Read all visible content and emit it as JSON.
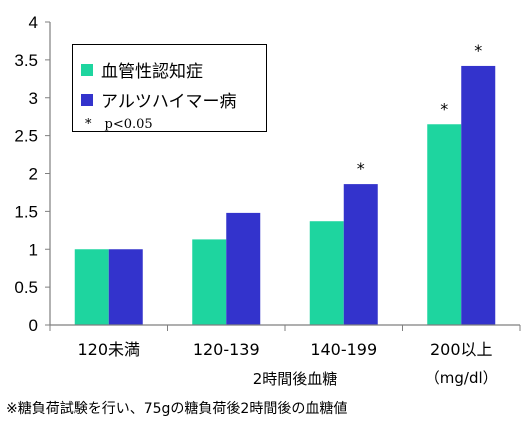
{
  "chart_data": {
    "type": "bar",
    "categories": [
      "120未満",
      "120-139",
      "140-199",
      "200以上"
    ],
    "category_unit": "（mg/dl）",
    "x_group_label": "2時間後血糖",
    "series": [
      {
        "name": "血管性認知症",
        "color": "#1ed59f",
        "values": [
          1.0,
          1.13,
          1.37,
          2.65
        ]
      },
      {
        "name": "アルツハイマー病",
        "color": "#3333cc",
        "values": [
          1.0,
          1.48,
          1.86,
          3.42
        ]
      }
    ],
    "significance": [
      {
        "series": 1,
        "category": 2,
        "mark": "*"
      },
      {
        "series": 0,
        "category": 3,
        "mark": "*"
      },
      {
        "series": 1,
        "category": 3,
        "mark": "*"
      }
    ],
    "significance_note": "*　p<0.05",
    "ylim": [
      0,
      4
    ],
    "yticks": [
      "0",
      "0.5",
      "1",
      "1.5",
      "2",
      "2.5",
      "3",
      "3.5",
      "4"
    ],
    "legend_position": "top-left",
    "grid": false
  },
  "footnote": "※糖負荷試験を行い、75gの糖負荷後2時間後の血糖値"
}
